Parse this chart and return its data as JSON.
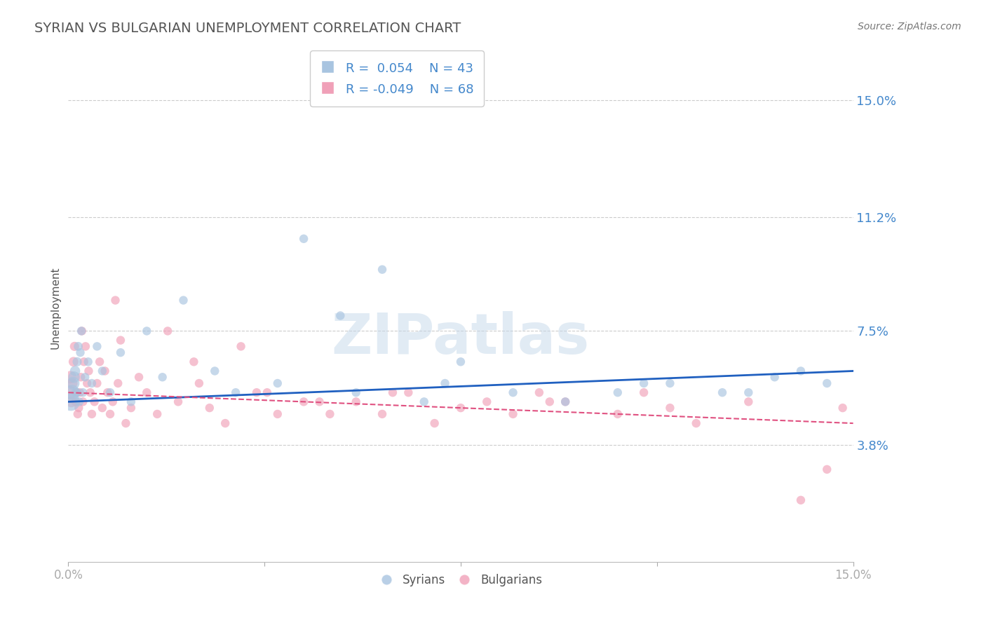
{
  "title": "SYRIAN VS BULGARIAN UNEMPLOYMENT CORRELATION CHART",
  "source_text": "Source: ZipAtlas.com",
  "ylabel": "Unemployment",
  "xlim": [
    0.0,
    15.0
  ],
  "ylim": [
    0.0,
    16.5
  ],
  "yticks": [
    3.8,
    7.5,
    11.2,
    15.0
  ],
  "ytick_labels": [
    "3.8%",
    "7.5%",
    "11.2%",
    "15.0%"
  ],
  "xtick_labels": [
    "0.0%",
    "",
    "",
    "",
    "15.0%"
  ],
  "watermark": "ZIPatlas",
  "legend": {
    "syrian_R": "0.054",
    "syrian_N": "43",
    "bulgarian_R": "-0.049",
    "bulgarian_N": "68"
  },
  "syrian_color": "#a8c4e0",
  "bulgarian_color": "#f0a0b8",
  "trend_syrian_color": "#2060c0",
  "trend_bulgarian_color": "#e05080",
  "syrians_x": [
    0.05,
    0.07,
    0.09,
    0.11,
    0.13,
    0.15,
    0.17,
    0.19,
    0.21,
    0.23,
    0.25,
    0.28,
    0.32,
    0.38,
    0.45,
    0.55,
    0.65,
    0.8,
    1.0,
    1.2,
    1.5,
    1.8,
    2.2,
    2.8,
    3.2,
    4.0,
    4.5,
    5.2,
    5.5,
    6.0,
    6.8,
    7.2,
    7.5,
    8.5,
    9.5,
    10.5,
    11.5,
    12.5,
    13.5,
    14.0,
    14.5,
    13.0,
    11.0
  ],
  "syrians_y": [
    5.2,
    5.5,
    5.8,
    6.0,
    6.2,
    5.5,
    6.5,
    7.0,
    5.2,
    6.8,
    7.5,
    5.5,
    6.0,
    6.5,
    5.8,
    7.0,
    6.2,
    5.5,
    6.8,
    5.2,
    7.5,
    6.0,
    8.5,
    6.2,
    5.5,
    5.8,
    10.5,
    8.0,
    5.5,
    9.5,
    5.2,
    5.8,
    6.5,
    5.5,
    5.2,
    5.5,
    5.8,
    5.5,
    6.0,
    6.2,
    5.8,
    5.5,
    5.8
  ],
  "syrians_sizes": [
    350,
    250,
    180,
    140,
    110,
    100,
    90,
    85,
    80,
    80,
    80,
    80,
    80,
    80,
    80,
    80,
    80,
    80,
    80,
    80,
    80,
    80,
    80,
    80,
    80,
    80,
    80,
    80,
    80,
    80,
    80,
    80,
    80,
    80,
    80,
    80,
    80,
    80,
    80,
    80,
    80,
    80,
    80
  ],
  "bulgarians_x": [
    0.02,
    0.04,
    0.06,
    0.08,
    0.1,
    0.12,
    0.14,
    0.16,
    0.18,
    0.2,
    0.22,
    0.24,
    0.26,
    0.28,
    0.3,
    0.33,
    0.36,
    0.39,
    0.42,
    0.45,
    0.5,
    0.55,
    0.6,
    0.65,
    0.7,
    0.75,
    0.8,
    0.85,
    0.9,
    0.95,
    1.0,
    1.1,
    1.2,
    1.35,
    1.5,
    1.7,
    1.9,
    2.1,
    2.4,
    2.7,
    3.0,
    3.3,
    3.6,
    4.0,
    4.5,
    5.0,
    5.5,
    6.0,
    6.5,
    7.0,
    7.5,
    8.0,
    8.5,
    9.0,
    9.5,
    10.5,
    11.5,
    12.0,
    13.0,
    14.0,
    14.5,
    14.8,
    11.0,
    9.2,
    6.2,
    4.8,
    3.8,
    2.5
  ],
  "bulgarians_y": [
    5.5,
    6.0,
    5.2,
    5.8,
    6.5,
    7.0,
    5.2,
    5.5,
    4.8,
    5.0,
    5.5,
    6.0,
    7.5,
    5.2,
    6.5,
    7.0,
    5.8,
    6.2,
    5.5,
    4.8,
    5.2,
    5.8,
    6.5,
    5.0,
    6.2,
    5.5,
    4.8,
    5.2,
    8.5,
    5.8,
    7.2,
    4.5,
    5.0,
    6.0,
    5.5,
    4.8,
    7.5,
    5.2,
    6.5,
    5.0,
    4.5,
    7.0,
    5.5,
    4.8,
    5.2,
    4.8,
    5.2,
    4.8,
    5.5,
    4.5,
    5.0,
    5.2,
    4.8,
    5.5,
    5.2,
    4.8,
    5.0,
    4.5,
    5.2,
    2.0,
    3.0,
    5.0,
    5.5,
    5.2,
    5.5,
    5.2,
    5.5,
    5.8
  ],
  "bulgarians_sizes": [
    200,
    160,
    130,
    110,
    100,
    90,
    85,
    80,
    80,
    80,
    80,
    80,
    80,
    80,
    80,
    80,
    80,
    80,
    80,
    80,
    80,
    80,
    80,
    80,
    80,
    80,
    80,
    80,
    80,
    80,
    80,
    80,
    80,
    80,
    80,
    80,
    80,
    80,
    80,
    80,
    80,
    80,
    80,
    80,
    80,
    80,
    80,
    80,
    80,
    80,
    80,
    80,
    80,
    80,
    80,
    80,
    80,
    80,
    80,
    80,
    80,
    80,
    80,
    80,
    80,
    80,
    80,
    80
  ]
}
